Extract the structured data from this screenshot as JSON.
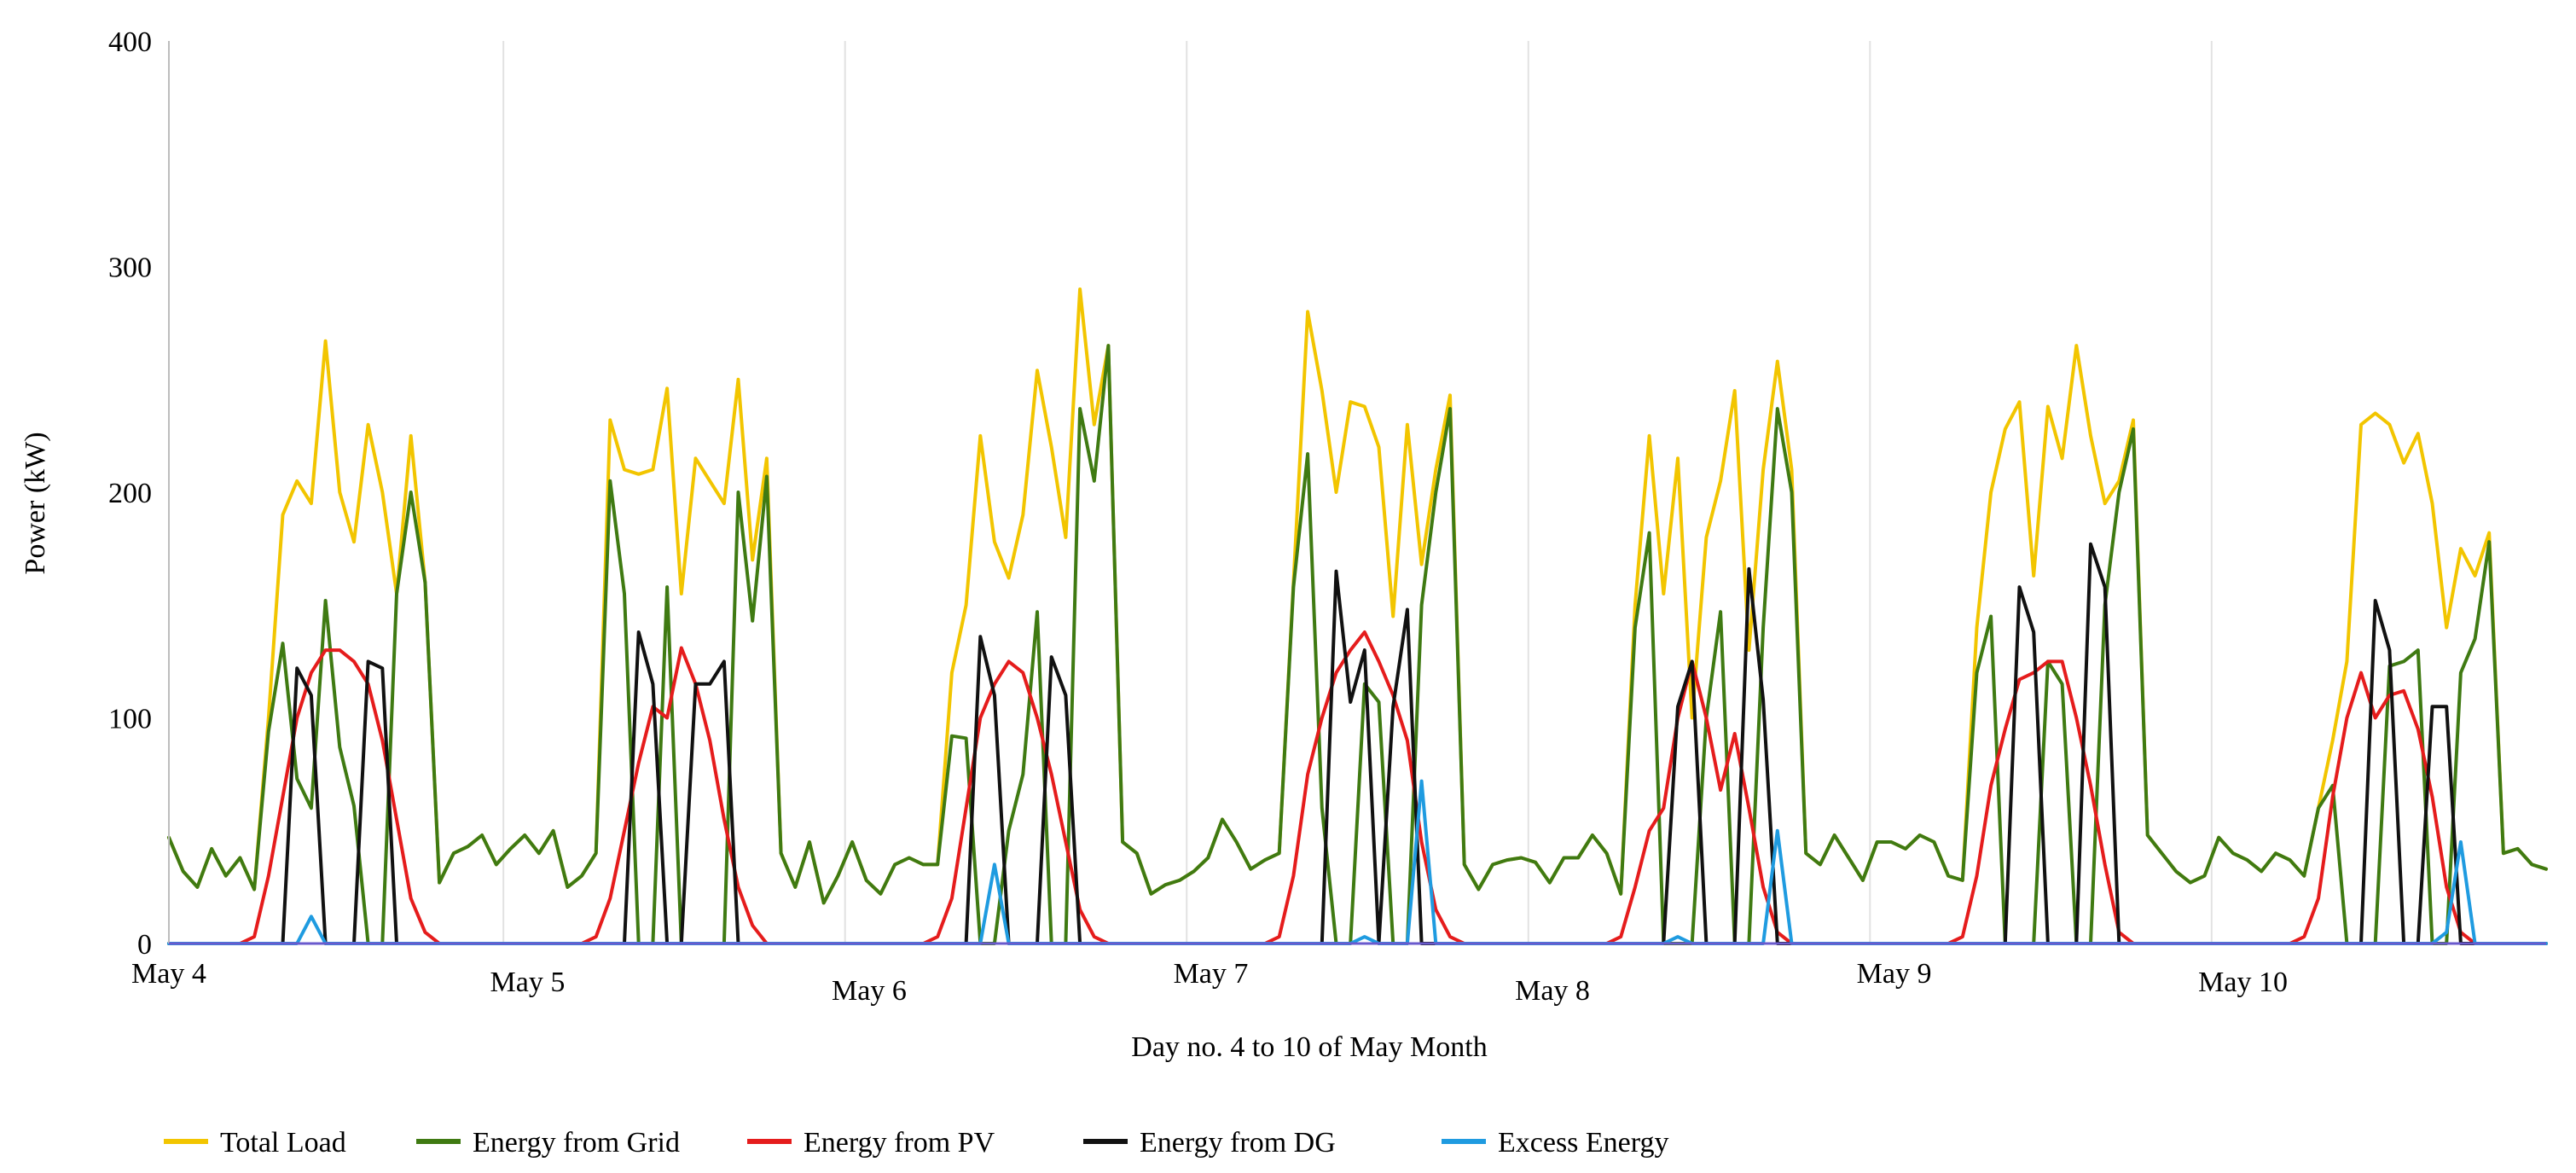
{
  "chart_data": {
    "type": "line",
    "title": "",
    "xlabel": "Day no. 4 to 10 of May Month",
    "ylabel": "Power (kW)",
    "ylim": [
      0,
      400
    ],
    "yticks": [
      0,
      100,
      200,
      300,
      400
    ],
    "xlim": [
      0,
      167
    ],
    "grid": "vertical gridlines at day boundaries",
    "legend": "bottom",
    "day_labels": [
      "May 4",
      "May 5",
      "May 6",
      "May 7",
      "May 8",
      "May 9",
      "May 10"
    ],
    "x_unit": "hour index (24 points per day)",
    "series": [
      {
        "name": "Total Load",
        "color": "#f2c500",
        "values": [
          47,
          32,
          25,
          42,
          30,
          38,
          24,
          100,
          190,
          205,
          195,
          267,
          200,
          178,
          230,
          200,
          155,
          225,
          160,
          27,
          40,
          43,
          48,
          35,
          42,
          48,
          40,
          50,
          25,
          30,
          40,
          232,
          210,
          208,
          210,
          246,
          155,
          215,
          205,
          195,
          250,
          170,
          215,
          40,
          25,
          45,
          18,
          30,
          45,
          28,
          22,
          35,
          38,
          35,
          35,
          120,
          150,
          225,
          178,
          162,
          190,
          254,
          220,
          180,
          290,
          230,
          265,
          45,
          40,
          22,
          26,
          28,
          32,
          38,
          55,
          45,
          33,
          37,
          40,
          160,
          280,
          245,
          200,
          240,
          238,
          220,
          145,
          230,
          168,
          210,
          243,
          35,
          24,
          35,
          37,
          38,
          36,
          27,
          38,
          38,
          48,
          40,
          22,
          150,
          225,
          155,
          215,
          100,
          180,
          205,
          245,
          130,
          210,
          258,
          210,
          40,
          35,
          48,
          38,
          28,
          45,
          45,
          42,
          48,
          45,
          30,
          28,
          140,
          200,
          228,
          240,
          163,
          238,
          215,
          265,
          225,
          195,
          205,
          232,
          48,
          40,
          32,
          27,
          30,
          47,
          40,
          37,
          32,
          40,
          37,
          30,
          60,
          90,
          125,
          230,
          235,
          230,
          213,
          226,
          195,
          140,
          175,
          163,
          182,
          40,
          42,
          35,
          33
        ]
      },
      {
        "name": "Energy from Grid",
        "color": "#3f7a12",
        "values": [
          47,
          32,
          25,
          42,
          30,
          38,
          24,
          94,
          133,
          73,
          60,
          152,
          87,
          61,
          0,
          0,
          155,
          200,
          160,
          27,
          40,
          43,
          48,
          35,
          42,
          48,
          40,
          50,
          25,
          30,
          40,
          205,
          155,
          0,
          0,
          158,
          0,
          0,
          0,
          0,
          200,
          143,
          207,
          40,
          25,
          45,
          18,
          30,
          45,
          28,
          22,
          35,
          38,
          35,
          35,
          92,
          91,
          0,
          0,
          50,
          75,
          147,
          0,
          0,
          237,
          205,
          265,
          45,
          40,
          22,
          26,
          28,
          32,
          38,
          55,
          45,
          33,
          37,
          40,
          158,
          217,
          60,
          0,
          0,
          115,
          107,
          0,
          0,
          150,
          200,
          237,
          35,
          24,
          35,
          37,
          38,
          36,
          27,
          38,
          38,
          48,
          40,
          22,
          140,
          182,
          0,
          0,
          0,
          100,
          147,
          0,
          0,
          140,
          237,
          200,
          40,
          35,
          48,
          38,
          28,
          45,
          45,
          42,
          48,
          45,
          30,
          28,
          120,
          145,
          0,
          0,
          0,
          125,
          115,
          0,
          0,
          150,
          200,
          228,
          48,
          40,
          32,
          27,
          30,
          47,
          40,
          37,
          32,
          40,
          37,
          30,
          60,
          70,
          0,
          0,
          0,
          123,
          125,
          130,
          0,
          0,
          120,
          135,
          178,
          40,
          42,
          35,
          33
        ]
      },
      {
        "name": "Energy from PV",
        "color": "#e51c1c",
        "values": [
          0,
          0,
          0,
          0,
          0,
          0,
          3,
          30,
          65,
          100,
          120,
          130,
          130,
          125,
          115,
          90,
          55,
          20,
          5,
          0,
          0,
          0,
          0,
          0,
          0,
          0,
          0,
          0,
          0,
          0,
          3,
          20,
          50,
          80,
          105,
          100,
          131,
          115,
          90,
          55,
          25,
          8,
          0,
          0,
          0,
          0,
          0,
          0,
          0,
          0,
          0,
          0,
          0,
          0,
          3,
          20,
          60,
          100,
          115,
          125,
          120,
          100,
          75,
          45,
          15,
          3,
          0,
          0,
          0,
          0,
          0,
          0,
          0,
          0,
          0,
          0,
          0,
          0,
          3,
          30,
          75,
          100,
          120,
          130,
          138,
          125,
          110,
          90,
          45,
          15,
          3,
          0,
          0,
          0,
          0,
          0,
          0,
          0,
          0,
          0,
          0,
          0,
          3,
          25,
          50,
          60,
          100,
          125,
          100,
          68,
          93,
          60,
          25,
          5,
          0,
          0,
          0,
          0,
          0,
          0,
          0,
          0,
          0,
          0,
          0,
          0,
          3,
          30,
          70,
          95,
          117,
          120,
          125,
          125,
          100,
          70,
          35,
          5,
          0,
          0,
          0,
          0,
          0,
          0,
          0,
          0,
          0,
          0,
          0,
          0,
          3,
          20,
          65,
          100,
          120,
          100,
          110,
          112,
          95,
          65,
          25,
          5,
          0,
          0,
          0,
          0,
          0,
          0
        ]
      },
      {
        "name": "Energy from DG",
        "color": "#111111",
        "values": [
          0,
          0,
          0,
          0,
          0,
          0,
          0,
          0,
          0,
          122,
          110,
          0,
          0,
          0,
          125,
          122,
          0,
          0,
          0,
          0,
          0,
          0,
          0,
          0,
          0,
          0,
          0,
          0,
          0,
          0,
          0,
          0,
          0,
          138,
          115,
          0,
          0,
          115,
          115,
          125,
          0,
          0,
          0,
          0,
          0,
          0,
          0,
          0,
          0,
          0,
          0,
          0,
          0,
          0,
          0,
          0,
          0,
          136,
          110,
          0,
          0,
          0,
          127,
          110,
          0,
          0,
          0,
          0,
          0,
          0,
          0,
          0,
          0,
          0,
          0,
          0,
          0,
          0,
          0,
          0,
          0,
          0,
          165,
          107,
          130,
          0,
          105,
          148,
          0,
          0,
          0,
          0,
          0,
          0,
          0,
          0,
          0,
          0,
          0,
          0,
          0,
          0,
          0,
          0,
          0,
          0,
          105,
          125,
          0,
          0,
          0,
          166,
          108,
          0,
          0,
          0,
          0,
          0,
          0,
          0,
          0,
          0,
          0,
          0,
          0,
          0,
          0,
          0,
          0,
          0,
          158,
          138,
          0,
          0,
          0,
          177,
          158,
          0,
          0,
          0,
          0,
          0,
          0,
          0,
          0,
          0,
          0,
          0,
          0,
          0,
          0,
          0,
          0,
          0,
          0,
          152,
          130,
          0,
          0,
          105,
          105,
          0,
          0,
          0,
          0,
          0,
          0,
          0
        ]
      },
      {
        "name": "Excess Energy",
        "color": "#1f9be0",
        "values": [
          0,
          0,
          0,
          0,
          0,
          0,
          0,
          0,
          0,
          0,
          12,
          0,
          0,
          0,
          0,
          0,
          0,
          0,
          0,
          0,
          0,
          0,
          0,
          0,
          0,
          0,
          0,
          0,
          0,
          0,
          0,
          0,
          0,
          0,
          0,
          0,
          0,
          0,
          0,
          0,
          0,
          0,
          0,
          0,
          0,
          0,
          0,
          0,
          0,
          0,
          0,
          0,
          0,
          0,
          0,
          0,
          0,
          0,
          35,
          0,
          0,
          0,
          0,
          0,
          0,
          0,
          0,
          0,
          0,
          0,
          0,
          0,
          0,
          0,
          0,
          0,
          0,
          0,
          0,
          0,
          0,
          0,
          0,
          0,
          3,
          0,
          0,
          0,
          72,
          0,
          0,
          0,
          0,
          0,
          0,
          0,
          0,
          0,
          0,
          0,
          0,
          0,
          0,
          0,
          0,
          0,
          3,
          0,
          0,
          0,
          0,
          0,
          0,
          50,
          0,
          0,
          0,
          0,
          0,
          0,
          0,
          0,
          0,
          0,
          0,
          0,
          0,
          0,
          0,
          0,
          0,
          0,
          0,
          0,
          0,
          0,
          0,
          0,
          0,
          0,
          0,
          0,
          0,
          0,
          0,
          0,
          0,
          0,
          0,
          0,
          0,
          0,
          0,
          0,
          0,
          0,
          0,
          0,
          0,
          0,
          5,
          45,
          0,
          0,
          0,
          0,
          0,
          0
        ]
      }
    ]
  }
}
